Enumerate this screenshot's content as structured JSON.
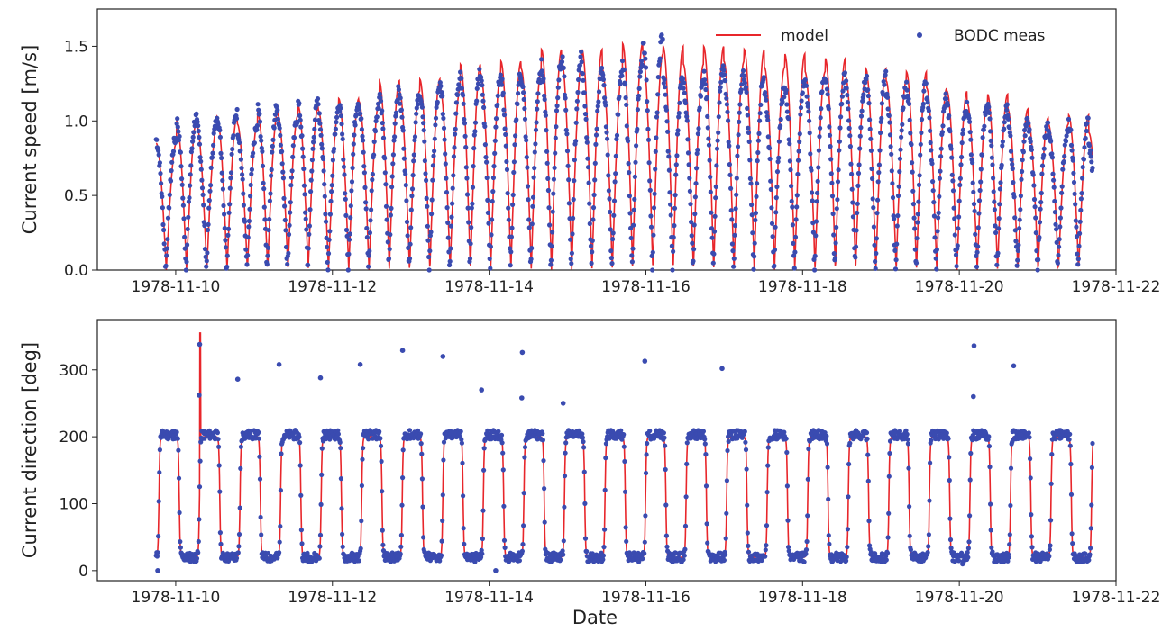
{
  "chart_data": [
    {
      "type": "line",
      "ylabel": "Current speed [m/s]",
      "xlabel": "",
      "xlim": [
        "1978-11-09 00:00",
        "1978-11-22 00:00"
      ],
      "ylim": [
        0,
        1.75
      ],
      "x_ticks": [
        "1978-11-10",
        "1978-11-12",
        "1978-11-14",
        "1978-11-16",
        "1978-11-18",
        "1978-11-20",
        "1978-11-22"
      ],
      "y_ticks": [
        "0.0",
        "0.5",
        "1.0",
        "1.5"
      ],
      "grid": false,
      "legend": {
        "placement": "top-right",
        "entries": [
          {
            "label": "model",
            "marker": "line",
            "color": "#e8262b"
          },
          {
            "label": "BODC meas",
            "marker": "dot",
            "color": "#3a4bb0"
          }
        ]
      },
      "series": [
        {
          "name": "model",
          "color": "#e8262b",
          "time_range": [
            "1978-11-09 18:00",
            "1978-11-21 17:00"
          ],
          "semidiurnal_peak_speeds": [
            0.85,
            1.0,
            0.97,
            1.03,
            0.98,
            1.06,
            1.04,
            1.1,
            1.07,
            1.15,
            1.13,
            1.27,
            1.2,
            1.28,
            1.22,
            1.38,
            1.32,
            1.4,
            1.35,
            1.48,
            1.4,
            1.48,
            1.35,
            1.52,
            1.45,
            1.5,
            1.38,
            1.5,
            1.4,
            1.48,
            1.36,
            1.45,
            1.33,
            1.42,
            1.3,
            1.35,
            1.27,
            1.33,
            1.22,
            1.2,
            1.12,
            1.18,
            1.08,
            1.02,
            0.98,
            1.04,
            0.92
          ]
        },
        {
          "name": "BODC meas",
          "color": "#3a4bb0",
          "time_range": [
            "1978-11-09 18:00",
            "1978-11-21 17:00"
          ],
          "sampling": "10-minute",
          "semidiurnal_peak_speeds": [
            0.88,
            1.02,
            0.98,
            1.05,
            0.95,
            1.1,
            1.02,
            1.12,
            1.05,
            1.13,
            1.1,
            1.2,
            1.15,
            1.2,
            1.25,
            1.33,
            1.28,
            1.3,
            1.3,
            1.38,
            1.43,
            1.32,
            1.3,
            1.38,
            1.57,
            1.3,
            1.25,
            1.35,
            1.3,
            1.3,
            1.2,
            1.25,
            1.3,
            1.3,
            1.25,
            1.3,
            1.2,
            1.25,
            1.15,
            1.1,
            1.08,
            1.1,
            1.0,
            0.98,
            0.95,
            1.0,
            0.85
          ]
        }
      ]
    },
    {
      "type": "line",
      "ylabel": "Current direction [deg]",
      "xlabel": "Date",
      "xlim": [
        "1978-11-09 00:00",
        "1978-11-22 00:00"
      ],
      "ylim": [
        -15,
        375
      ],
      "x_ticks": [
        "1978-11-10",
        "1978-11-12",
        "1978-11-14",
        "1978-11-16",
        "1978-11-18",
        "1978-11-20",
        "1978-11-22"
      ],
      "y_ticks": [
        "0",
        "100",
        "200",
        "300"
      ],
      "grid": false,
      "series": [
        {
          "name": "model",
          "color": "#e8262b",
          "time_range": [
            "1978-11-09 18:00",
            "1978-11-21 17:00"
          ],
          "flood_direction_deg": 200,
          "ebb_direction_deg": 20,
          "spike": {
            "time": "1978-11-10 07:30",
            "value": 355
          }
        },
        {
          "name": "BODC meas",
          "color": "#3a4bb0",
          "time_range": [
            "1978-11-09 18:00",
            "1978-11-21 17:00"
          ],
          "flood_direction_deg": 203,
          "ebb_direction_deg": 20,
          "outliers": [
            {
              "time": "1978-11-09 18:30",
              "value": 0
            },
            {
              "time": "1978-11-10 07:20",
              "value": 338
            },
            {
              "time": "1978-11-10 07:10",
              "value": 262
            },
            {
              "time": "1978-11-10 19:00",
              "value": 286
            },
            {
              "time": "1978-11-11 07:40",
              "value": 308
            },
            {
              "time": "1978-11-11 20:20",
              "value": 288
            },
            {
              "time": "1978-11-12 08:30",
              "value": 308
            },
            {
              "time": "1978-11-12 21:30",
              "value": 329
            },
            {
              "time": "1978-11-13 09:50",
              "value": 320
            },
            {
              "time": "1978-11-13 21:40",
              "value": 270
            },
            {
              "time": "1978-11-14 10:10",
              "value": 326
            },
            {
              "time": "1978-11-14 10:00",
              "value": 258
            },
            {
              "time": "1978-11-14 22:40",
              "value": 250
            },
            {
              "time": "1978-11-15 23:40",
              "value": 313
            },
            {
              "time": "1978-11-16 23:20",
              "value": 302
            },
            {
              "time": "1978-11-20 04:30",
              "value": 336
            },
            {
              "time": "1978-11-20 04:20",
              "value": 260
            },
            {
              "time": "1978-11-20 16:40",
              "value": 306
            },
            {
              "time": "1978-11-14 02:00",
              "value": 0
            },
            {
              "time": "1978-11-20 01:00",
              "value": 10
            }
          ]
        }
      ]
    }
  ]
}
